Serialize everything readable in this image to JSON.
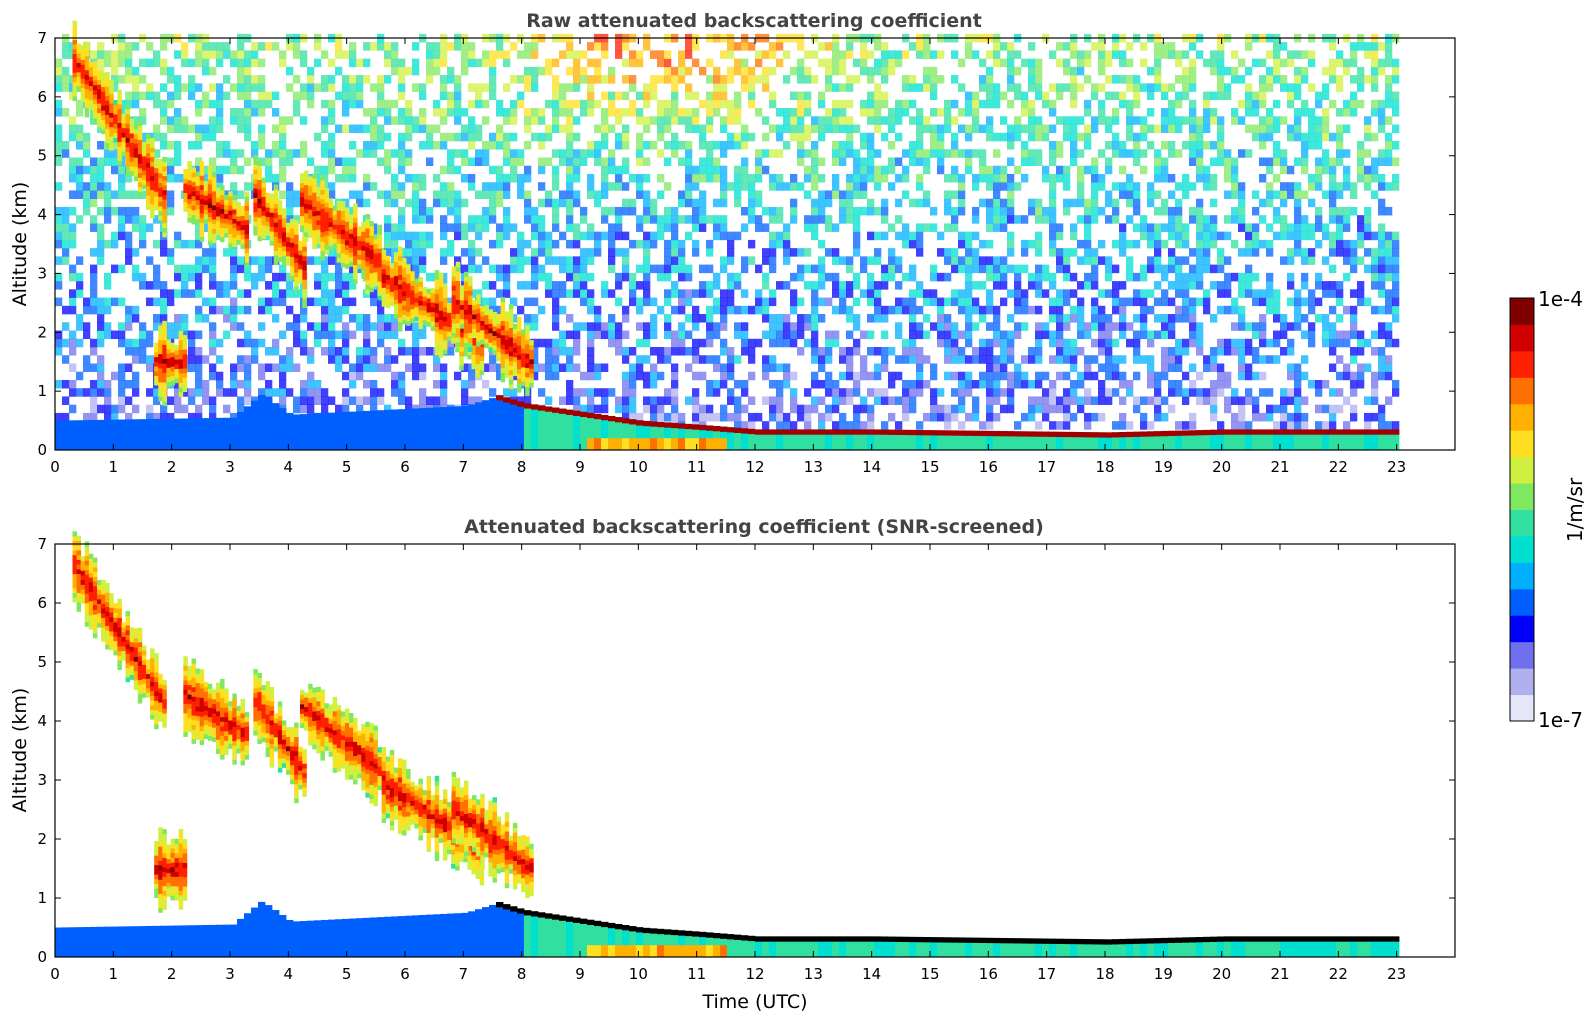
{
  "chart_data": [
    {
      "type": "heatmap",
      "title": "Raw attenuated backscattering coefficient",
      "xlabel": "",
      "ylabel": "Altitude (km)",
      "xlim": [
        0,
        24
      ],
      "ylim": [
        0,
        7
      ],
      "xticks": [
        "0",
        "1",
        "2",
        "3",
        "4",
        "5",
        "6",
        "7",
        "8",
        "9",
        "10",
        "11",
        "12",
        "13",
        "14",
        "15",
        "16",
        "17",
        "18",
        "19",
        "20",
        "21",
        "22",
        "23"
      ],
      "yticks": [
        "0",
        "1",
        "2",
        "3",
        "4",
        "5",
        "6",
        "7"
      ],
      "data_end_hour": 23,
      "screened": false,
      "features": {
        "boundary_layer_top_km": [
          [
            0,
            0.5
          ],
          [
            3,
            0.55
          ],
          [
            3.5,
            0.95
          ],
          [
            4,
            0.6
          ],
          [
            7,
            0.75
          ],
          [
            7.5,
            0.9
          ],
          [
            8,
            0.75
          ],
          [
            9,
            0.6
          ],
          [
            10,
            0.45
          ],
          [
            11,
            0.38
          ],
          [
            12,
            0.3
          ],
          [
            14,
            0.3
          ],
          [
            18,
            0.25
          ],
          [
            20,
            0.3
          ],
          [
            22,
            0.3
          ],
          [
            23,
            0.3
          ]
        ],
        "cloud_layers": [
          {
            "t0": 0.3,
            "t1": 1.9,
            "z0": 6.6,
            "z1": 4.2
          },
          {
            "t0": 2.2,
            "t1": 3.3,
            "z0": 4.4,
            "z1": 3.7
          },
          {
            "t0": 3.4,
            "t1": 4.3,
            "z0": 4.3,
            "z1": 3.0
          },
          {
            "t0": 4.2,
            "t1": 5.6,
            "z0": 4.2,
            "z1": 3.1
          },
          {
            "t0": 5.6,
            "t1": 7.3,
            "z0": 2.9,
            "z1": 1.8
          },
          {
            "t0": 6.8,
            "t1": 8.2,
            "z0": 2.5,
            "z1": 1.4
          },
          {
            "t0": 1.7,
            "t1": 2.2,
            "z0": 1.45,
            "z1": 1.45
          }
        ]
      }
    },
    {
      "type": "heatmap",
      "title": "Attenuated backscattering coefficient (SNR-screened)",
      "xlabel": "Time (UTC)",
      "ylabel": "Altitude (km)",
      "xlim": [
        0,
        24
      ],
      "ylim": [
        0,
        7
      ],
      "xticks": [
        "0",
        "1",
        "2",
        "3",
        "4",
        "5",
        "6",
        "7",
        "8",
        "9",
        "10",
        "11",
        "12",
        "13",
        "14",
        "15",
        "16",
        "17",
        "18",
        "19",
        "20",
        "21",
        "22",
        "23"
      ],
      "yticks": [
        "0",
        "1",
        "2",
        "3",
        "4",
        "5",
        "6",
        "7"
      ],
      "data_end_hour": 23,
      "screened": true
    }
  ],
  "colorbar": {
    "label": "1/m/sr",
    "min_label": "1e-7",
    "max_label": "1e-4",
    "scale": "log",
    "colors": [
      "#e6e6fa",
      "#b0b0f0",
      "#7070ee",
      "#0000ff",
      "#0060ff",
      "#00b0ff",
      "#00e0d0",
      "#30e0a0",
      "#80e860",
      "#d0f040",
      "#ffe020",
      "#ffb000",
      "#ff7000",
      "#ff2000",
      "#d00000",
      "#800000"
    ]
  }
}
